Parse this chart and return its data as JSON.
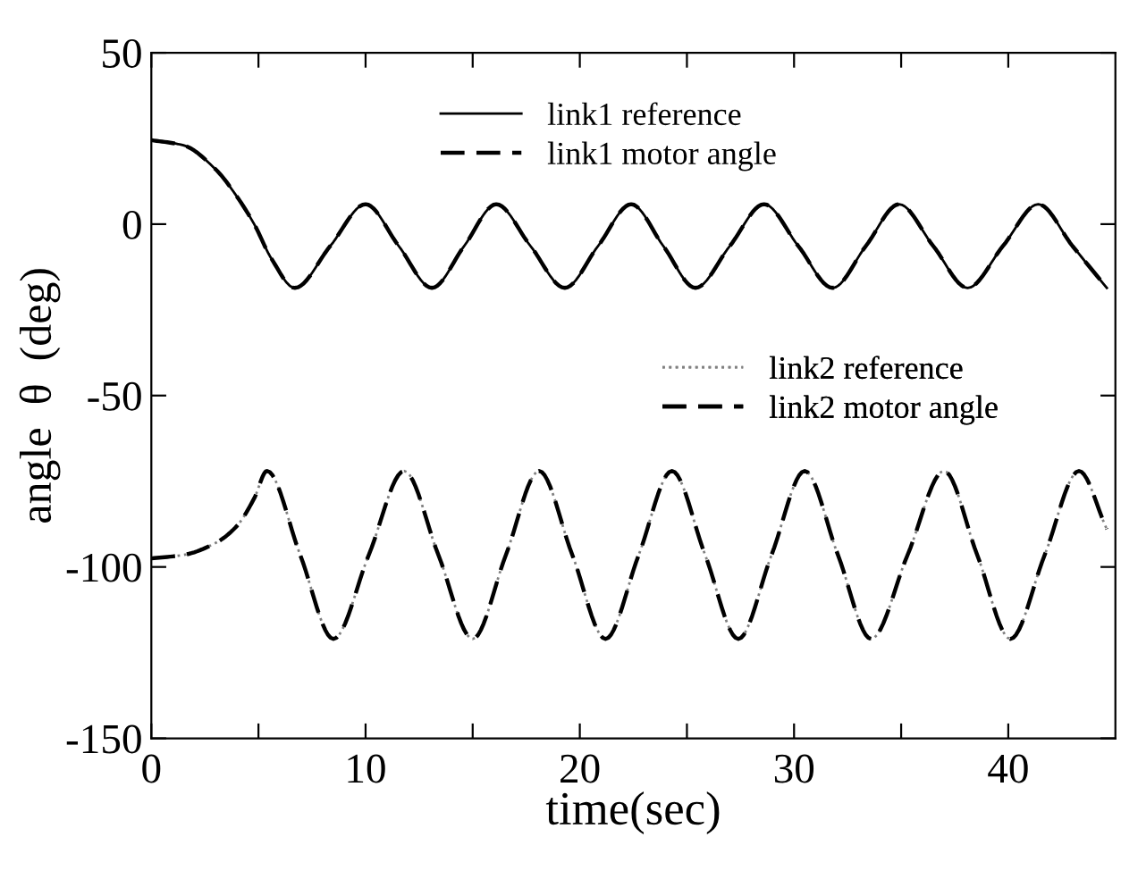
{
  "chart_data": {
    "type": "line",
    "xlabel": "time(sec)",
    "ylabel": "angle  θ  (deg)",
    "xlim": [
      0,
      45
    ],
    "ylim": [
      -150,
      50
    ],
    "xticks": [
      0,
      {
        "value": 5,
        "label": null
      },
      10,
      {
        "value": 15,
        "label": null
      },
      20,
      {
        "value": 25,
        "label": null
      },
      30,
      {
        "value": 35,
        "label": null
      },
      40
    ],
    "yticks": [
      -150,
      -100,
      -50,
      0,
      50
    ],
    "grid": false,
    "legend": "top",
    "marker": "none",
    "series": [
      {
        "name": "link1 reference",
        "color": "#000000",
        "line_style": "solid",
        "x": [
          0,
          1.5,
          3,
          4,
          4.8,
          5.6,
          6.7,
          8.35,
          10,
          11.55,
          13.1,
          14.6,
          16.1,
          17.7,
          19.3,
          20.85,
          22.4,
          23.9,
          25.4,
          27.0,
          28.6,
          30.2,
          31.8,
          33.35,
          34.9,
          36.5,
          38.1,
          39.75,
          41.4,
          43.0,
          44.6
        ],
        "values": [
          24.5,
          23,
          16,
          8,
          0,
          -10,
          -18.6,
          -6.4,
          5.8,
          -6.4,
          -18.6,
          -6.4,
          5.8,
          -6.4,
          -18.6,
          -6.4,
          5.8,
          -6.4,
          -18.6,
          -6.4,
          5.8,
          -6.4,
          -18.6,
          -6.4,
          5.8,
          -6.4,
          -18.6,
          -6.4,
          5.8,
          -6.4,
          -18.6
        ]
      },
      {
        "name": "link1 motor angle",
        "color": "#000000",
        "line_style": "dashed",
        "x": [
          0,
          1.5,
          3,
          4,
          4.8,
          5.6,
          6.7,
          8.35,
          10,
          11.55,
          13.1,
          14.6,
          16.1,
          17.7,
          19.3,
          20.85,
          22.4,
          23.9,
          25.4,
          27.0,
          28.6,
          30.2,
          31.8,
          33.35,
          34.9,
          36.5,
          38.1,
          39.75,
          41.4,
          43.0,
          44.6
        ],
        "values": [
          24.5,
          23,
          16,
          8,
          0,
          -10,
          -18.6,
          -6.4,
          5.8,
          -6.4,
          -18.6,
          -6.4,
          5.8,
          -6.4,
          -18.6,
          -6.4,
          5.8,
          -6.4,
          -18.6,
          -6.4,
          5.8,
          -6.4,
          -18.6,
          -6.4,
          5.8,
          -6.4,
          -18.6,
          -6.4,
          5.8,
          -6.4,
          -18.6
        ]
      },
      {
        "name": "link2 reference",
        "color": "#808080",
        "line_style": "dotted",
        "x": [
          0,
          1.5,
          3,
          4,
          4.8,
          5.4,
          6.95,
          8.5,
          10.15,
          11.8,
          13.4,
          15.0,
          16.55,
          18.1,
          19.65,
          21.2,
          22.75,
          24.3,
          25.85,
          27.4,
          28.95,
          30.5,
          32.05,
          33.6,
          35.3,
          37.0,
          38.55,
          40.1,
          41.7,
          43.3,
          44.6
        ],
        "values": [
          -97.5,
          -96.5,
          -93,
          -88,
          -80,
          -72,
          -96.5,
          -121,
          -96.5,
          -72,
          -96.5,
          -121,
          -96.5,
          -72,
          -96.5,
          -121,
          -96.5,
          -72,
          -96.5,
          -121,
          -96.5,
          -72,
          -96.5,
          -121,
          -96.5,
          -72,
          -96.5,
          -121,
          -96.5,
          -72,
          -89
        ]
      },
      {
        "name": "link2 motor angle",
        "color": "#000000",
        "line_style": "dashed",
        "x": [
          0,
          1.5,
          3,
          4,
          4.8,
          5.4,
          6.95,
          8.5,
          10.15,
          11.8,
          13.4,
          15.0,
          16.55,
          18.1,
          19.65,
          21.2,
          22.75,
          24.3,
          25.85,
          27.4,
          28.95,
          30.5,
          32.05,
          33.6,
          35.3,
          37.0,
          38.55,
          40.1,
          41.7,
          43.3,
          44.6
        ],
        "values": [
          -97.5,
          -96.5,
          -93,
          -88,
          -80,
          -72,
          -96.5,
          -121,
          -96.5,
          -72,
          -96.5,
          -121,
          -96.5,
          -72,
          -96.5,
          -121,
          -96.5,
          -72,
          -96.5,
          -121,
          -96.5,
          -72,
          -96.5,
          -121,
          -96.5,
          -72,
          -96.5,
          -121,
          -96.5,
          -72,
          -89
        ]
      }
    ]
  }
}
